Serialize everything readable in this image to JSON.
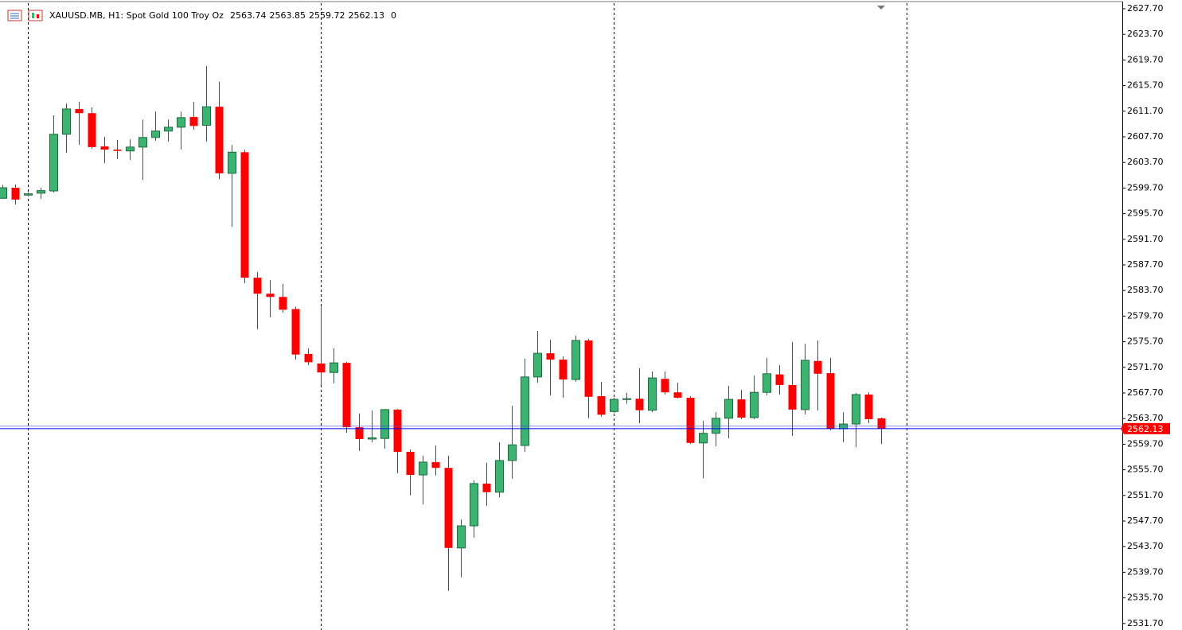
{
  "chart_data": {
    "type": "candlestick",
    "title": "XAUUSD.MB, H1:  Spot Gold 100 Troy Oz",
    "trailing_text": "0",
    "up_color": "#3cb371",
    "down_color": "#ff0000",
    "price_line_color": "#0000ff",
    "open": [
      2598.1,
      2599.75,
      2598.6,
      2598.9,
      2599.25,
      2608.1,
      2612.05,
      2611.4,
      2606.2,
      2605.7,
      2605.5,
      2606.1,
      2607.6,
      2608.6,
      2609.2,
      2610.8,
      2609.5,
      2612.4,
      2602.0,
      2605.3,
      2585.7,
      2583.2,
      2582.7,
      2580.8,
      2573.8,
      2572.3,
      2570.9,
      2572.4,
      2562.35,
      2560.5,
      2560.6,
      2565.1,
      2558.5,
      2554.9,
      2556.9,
      2556.0,
      2543.5,
      2546.95,
      2553.55,
      2552.2,
      2557.15,
      2559.5,
      2570.2,
      2573.9,
      2572.9,
      2569.8,
      2575.9,
      2567.2,
      2564.8,
      2566.8,
      2566.8,
      2565.0,
      2569.9,
      2567.8,
      2566.95,
      2559.9,
      2561.4,
      2563.75,
      2566.7,
      2563.85,
      2567.8,
      2570.6,
      2568.95,
      2565.1,
      2572.7,
      2570.8,
      2562.1,
      2562.85,
      2567.45,
      2563.74
    ],
    "high": [
      2600.2,
      2600.25,
      2599.0,
      2599.75,
      2611.05,
      2612.9,
      2613.2,
      2612.3,
      2607.7,
      2607.2,
      2607.3,
      2610.4,
      2611.65,
      2610.4,
      2611.65,
      2613.15,
      2618.75,
      2616.3,
      2606.45,
      2605.7,
      2586.6,
      2585.35,
      2584.75,
      2581.15,
      2574.65,
      2581.2,
      2574.65,
      2572.55,
      2564.5,
      2564.95,
      2565.2,
      2565.2,
      2558.9,
      2557.9,
      2559.5,
      2557.9,
      2547.95,
      2554.05,
      2556.8,
      2560.0,
      2565.7,
      2573.05,
      2577.4,
      2576.0,
      2573.4,
      2576.65,
      2576.15,
      2569.45,
      2566.95,
      2567.7,
      2571.55,
      2571.05,
      2571.05,
      2569.3,
      2567.2,
      2563.35,
      2564.7,
      2568.8,
      2568.2,
      2570.45,
      2573.2,
      2572.05,
      2575.65,
      2575.4,
      2575.9,
      2573.2,
      2564.7,
      2567.7,
      2567.8,
      2563.85
    ],
    "low": [
      2598.0,
      2597.15,
      2598.4,
      2598.0,
      2599.0,
      2605.2,
      2606.45,
      2605.85,
      2603.6,
      2604.2,
      2604.1,
      2601.0,
      2607.1,
      2606.95,
      2605.7,
      2608.8,
      2606.95,
      2601.1,
      2593.65,
      2584.85,
      2577.65,
      2579.5,
      2580.25,
      2572.9,
      2572.05,
      2568.95,
      2569.2,
      2561.5,
      2558.65,
      2560.0,
      2559.0,
      2555.15,
      2551.7,
      2550.3,
      2554.8,
      2536.8,
      2538.9,
      2545.1,
      2550.05,
      2551.4,
      2554.3,
      2558.5,
      2569.3,
      2567.3,
      2566.95,
      2569.45,
      2563.75,
      2564.0,
      2564.6,
      2566.0,
      2563.0,
      2564.7,
      2567.45,
      2566.85,
      2559.75,
      2554.4,
      2559.4,
      2560.6,
      2563.6,
      2563.6,
      2567.35,
      2567.45,
      2561.0,
      2564.35,
      2564.95,
      2561.85,
      2560.0,
      2559.25,
      2563.0,
      2559.72
    ],
    "close": [
      2599.75,
      2597.9,
      2598.8,
      2599.3,
      2608.1,
      2612.05,
      2611.4,
      2606.1,
      2605.7,
      2605.5,
      2606.1,
      2607.6,
      2608.6,
      2609.2,
      2610.7,
      2609.4,
      2612.4,
      2602.0,
      2605.3,
      2585.7,
      2583.2,
      2582.7,
      2580.7,
      2573.7,
      2572.5,
      2570.9,
      2572.4,
      2562.35,
      2560.5,
      2560.7,
      2565.1,
      2558.5,
      2554.9,
      2556.9,
      2556.0,
      2543.5,
      2546.95,
      2553.55,
      2552.2,
      2557.15,
      2559.6,
      2570.2,
      2573.9,
      2572.9,
      2569.8,
      2575.9,
      2567.1,
      2564.3,
      2566.7,
      2566.8,
      2565.0,
      2570.05,
      2567.8,
      2566.95,
      2559.9,
      2561.4,
      2563.75,
      2566.7,
      2563.85,
      2567.8,
      2570.7,
      2568.95,
      2565.1,
      2572.8,
      2570.7,
      2562.1,
      2562.85,
      2567.45,
      2563.6,
      2562.13
    ],
    "ylim": [
      2530.93,
      2628.57
    ],
    "yticks": [
      {
        "value": 2531.7,
        "label": "2531.70"
      },
      {
        "value": 2535.7,
        "label": "2535.70"
      },
      {
        "value": 2539.7,
        "label": "2539.70"
      },
      {
        "value": 2543.7,
        "label": "2543.70"
      },
      {
        "value": 2547.7,
        "label": "2547.70"
      },
      {
        "value": 2551.7,
        "label": "2551.70"
      },
      {
        "value": 2555.7,
        "label": "2555.70"
      },
      {
        "value": 2559.7,
        "label": "2559.70"
      },
      {
        "value": 2563.7,
        "label": "2563.70"
      },
      {
        "value": 2567.7,
        "label": "2567.70"
      },
      {
        "value": 2571.7,
        "label": "2571.70"
      },
      {
        "value": 2575.7,
        "label": "2575.70"
      },
      {
        "value": 2579.7,
        "label": "2579.70"
      },
      {
        "value": 2583.7,
        "label": "2583.70"
      },
      {
        "value": 2587.7,
        "label": "2587.70"
      },
      {
        "value": 2591.7,
        "label": "2591.70"
      },
      {
        "value": 2595.7,
        "label": "2595.70"
      },
      {
        "value": 2599.7,
        "label": "2599.70"
      },
      {
        "value": 2603.7,
        "label": "2603.70"
      },
      {
        "value": 2607.7,
        "label": "2607.70"
      },
      {
        "value": 2611.7,
        "label": "2611.70"
      },
      {
        "value": 2615.7,
        "label": "2615.70"
      },
      {
        "value": 2619.7,
        "label": "2619.70"
      },
      {
        "value": 2623.7,
        "label": "2623.70"
      },
      {
        "value": 2627.7,
        "label": "2627.70"
      }
    ]
  }
}
